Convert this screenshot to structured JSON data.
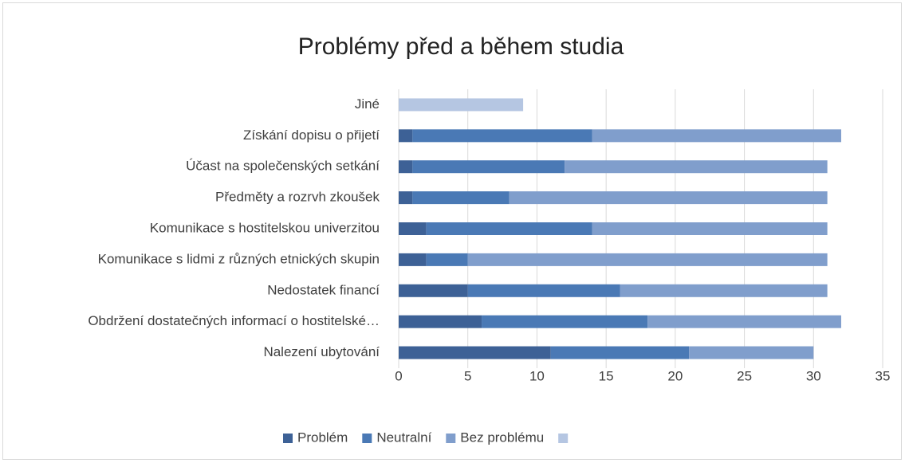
{
  "chart_data": {
    "type": "stacked-barh",
    "title": "Problémy před a během studia",
    "categories": [
      "Jiné",
      "Získání dopisu o přijetí",
      "Účast na společenských setkání",
      "Předměty a rozrvh zkoušek",
      "Komunikace s hostitelskou univerzitou",
      "Komunikace s lidmi z různých etnických skupin",
      "Nedostatek financí",
      "Obdržení dostatečných informací o hostitelské…",
      "Nalezení ubytování"
    ],
    "series": [
      {
        "name": "Problém",
        "color": "#3d6196",
        "values": [
          null,
          1,
          1,
          1,
          2,
          2,
          5,
          6,
          11
        ]
      },
      {
        "name": "Neutralní",
        "color": "#4a79b5",
        "values": [
          null,
          13,
          11,
          7,
          12,
          3,
          11,
          12,
          10
        ]
      },
      {
        "name": "Bez problému",
        "color": "#809ecc",
        "values": [
          null,
          18,
          19,
          23,
          17,
          26,
          15,
          14,
          9
        ]
      },
      {
        "color": "#b5c6e2",
        "values": [
          9,
          null,
          null,
          null,
          null,
          null,
          null,
          null,
          null
        ]
      }
    ],
    "xlim": [
      0,
      35
    ],
    "xticks": [
      0,
      5,
      10,
      15,
      20,
      25,
      30,
      35
    ],
    "grid": true,
    "legend": "bottom"
  }
}
